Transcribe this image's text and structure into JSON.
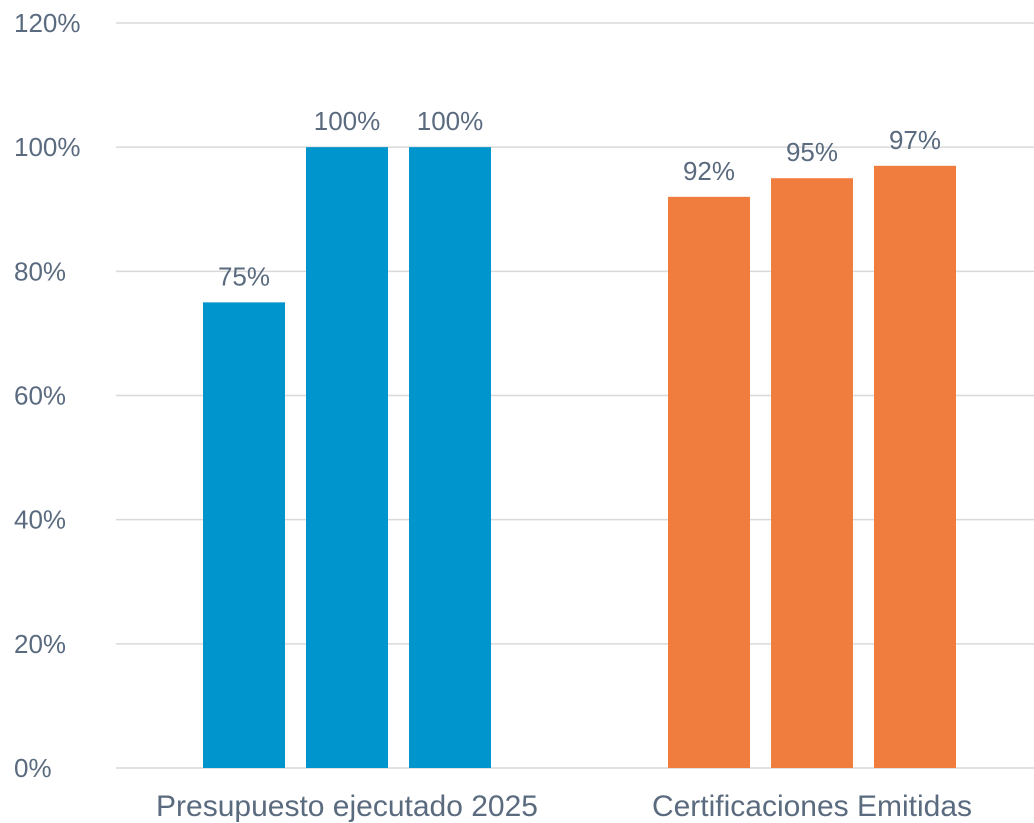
{
  "chart_data": {
    "type": "bar",
    "categories": [
      "Presupuesto ejecutado 2025",
      "Certificaciones Emitidas"
    ],
    "groups": [
      {
        "category": "Presupuesto ejecutado 2025",
        "color": "#0095CC",
        "values": [
          75,
          100,
          100
        ],
        "labels": [
          "75%",
          "100%",
          "100%"
        ]
      },
      {
        "category": "Certificaciones Emitidas",
        "color": "#F07D3D",
        "values": [
          92,
          95,
          97
        ],
        "labels": [
          "92%",
          "95%",
          "97%"
        ]
      }
    ],
    "ylim": [
      0,
      120
    ],
    "yticks": [
      0,
      20,
      40,
      60,
      80,
      100,
      120
    ],
    "ytick_labels": [
      "0%",
      "20%",
      "40%",
      "60%",
      "80%",
      "100%",
      "120%"
    ],
    "grid": true,
    "colors": {
      "grid": "#D9D9D9",
      "text": "#5B6B7F"
    }
  }
}
